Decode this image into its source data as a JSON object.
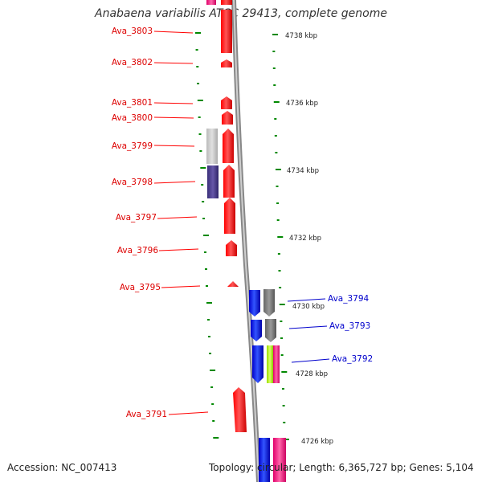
{
  "title": "Anabaena variabilis ATCC 29413, complete genome",
  "footer": {
    "accession": "Accession: NC_007413",
    "summary": "Topology: circular; Length: 6,365,727 bp; Genes: 5,104"
  },
  "ruler_labels": [
    "4738 kbp",
    "4736 kbp",
    "4734 kbp",
    "4732 kbp",
    "4730 kbp",
    "4728 kbp",
    "4726 kbp"
  ],
  "genes_left": [
    "Ava_3803",
    "Ava_3802",
    "Ava_3801",
    "Ava_3800",
    "Ava_3799",
    "Ava_3798",
    "Ava_3797",
    "Ava_3796",
    "Ava_3795",
    "Ava_3791"
  ],
  "genes_right": [
    "Ava_3794",
    "Ava_3793",
    "Ava_3792"
  ],
  "colors": {
    "left_strand_gene": "#ff0000",
    "right_strand_gene": "#0000ee",
    "tick": "#008800",
    "backbone": "#999999",
    "grey_feature": "#808080",
    "purple_feature": "#4b3f8f",
    "pink_feature": "#ff3399",
    "yellow_green_feature": "#ccff33"
  }
}
